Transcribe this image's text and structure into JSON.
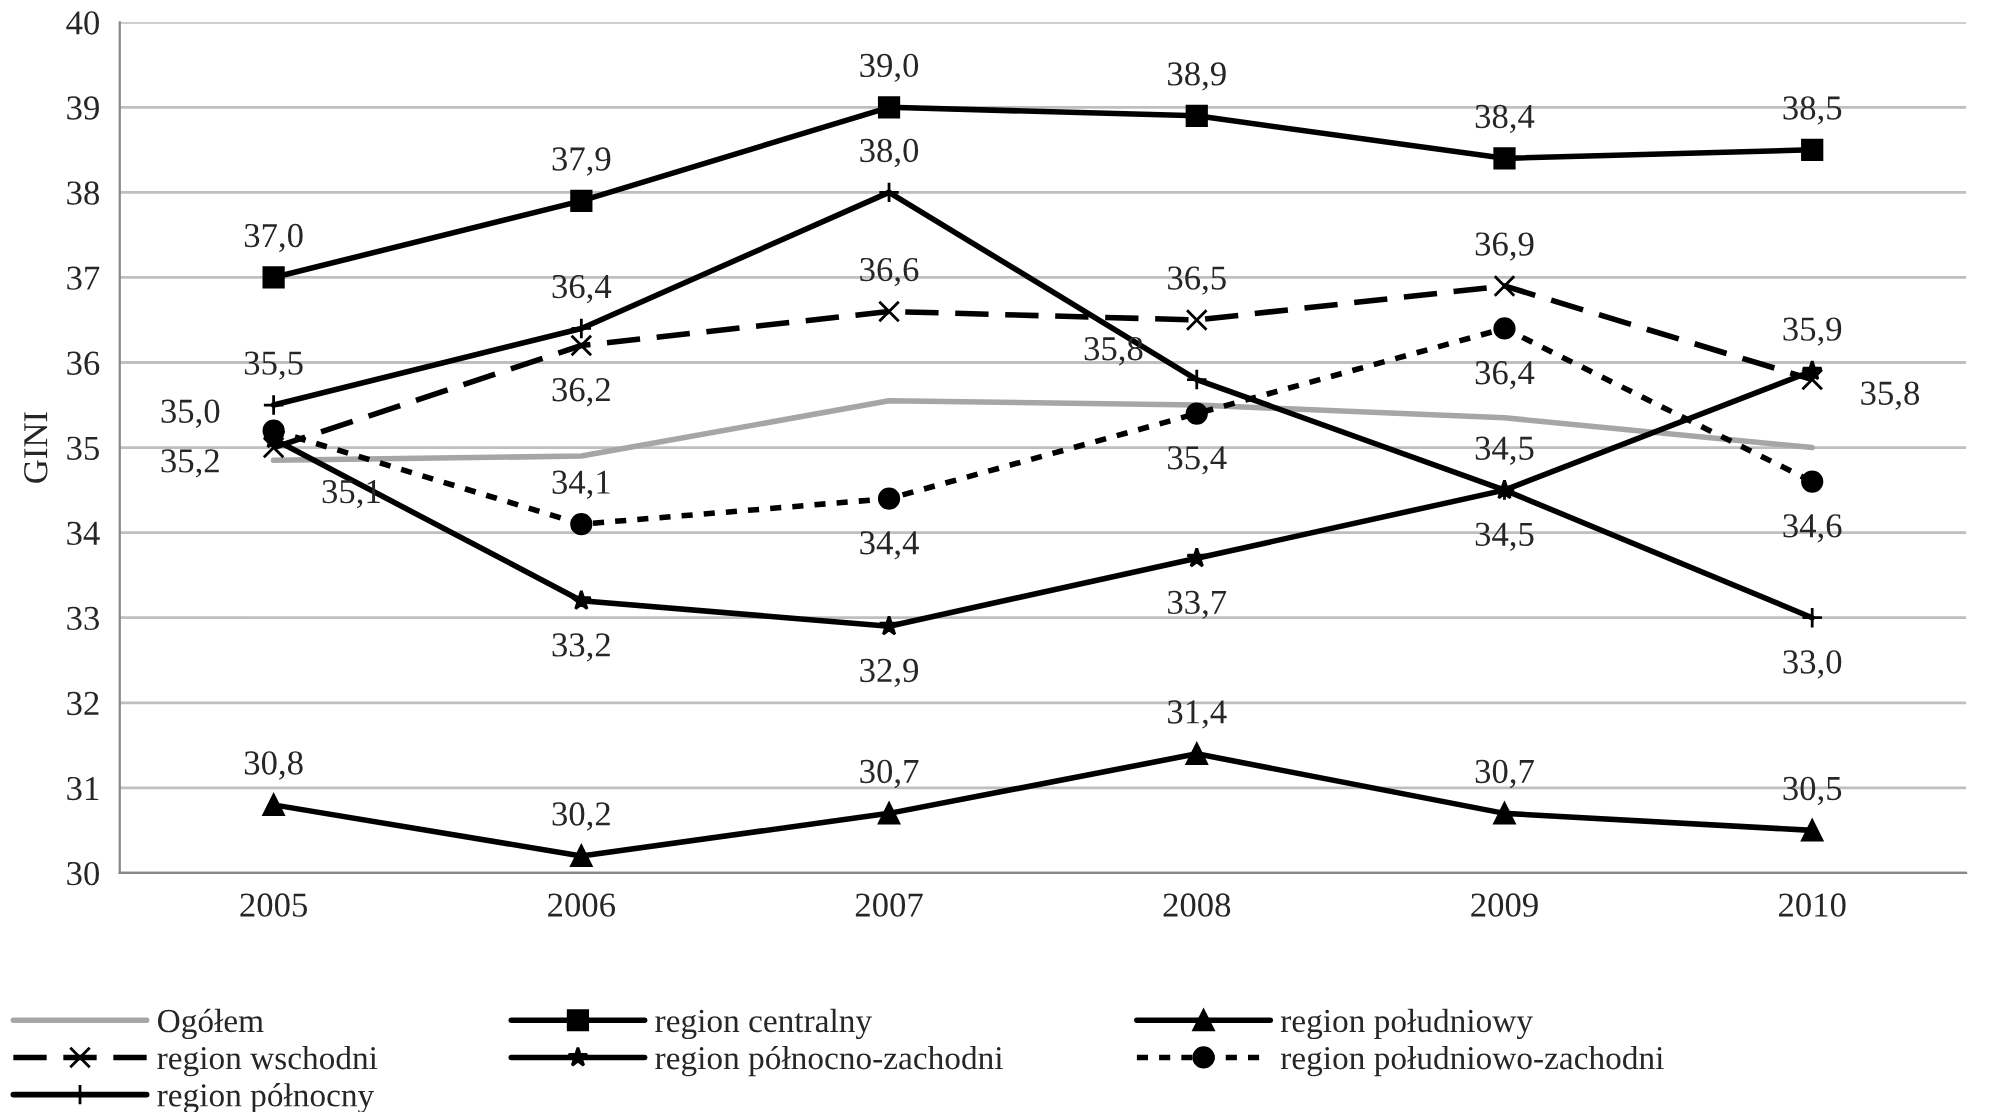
{
  "chart_data": {
    "type": "line",
    "ylabel": "GINI",
    "categories": [
      "2005",
      "2006",
      "2007",
      "2008",
      "2009",
      "2010"
    ],
    "ylim": [
      30,
      40
    ],
    "yticks": [
      30,
      31,
      32,
      33,
      34,
      35,
      36,
      37,
      38,
      39,
      40
    ],
    "grid": "y",
    "legend": "bottom",
    "series": [
      {
        "name": "Ogółem",
        "color": "#a6a6a6",
        "marker": "none",
        "line_style": "solid",
        "values": [
          34.85,
          34.9,
          35.55,
          35.5,
          35.35,
          35.0
        ]
      },
      {
        "name": "region centralny",
        "color": "#000000",
        "marker": "square",
        "line_style": "solid",
        "values": [
          37.0,
          37.9,
          39.0,
          38.9,
          38.4,
          38.5
        ],
        "value_labels": [
          "37,0",
          "37,9",
          "39,0",
          "38,9",
          "38,4",
          "38,5"
        ]
      },
      {
        "name": "region południowy",
        "color": "#000000",
        "marker": "triangle",
        "line_style": "solid",
        "values": [
          30.8,
          30.2,
          30.7,
          31.4,
          30.7,
          30.5
        ],
        "value_labels": [
          "30,8",
          "30,2",
          "30,7",
          "31,4",
          "30,7",
          "30,5"
        ]
      },
      {
        "name": "region wschodni",
        "color": "#000000",
        "marker": "cross",
        "line_style": "dashed",
        "values": [
          35.0,
          36.2,
          36.6,
          36.5,
          36.9,
          35.8
        ],
        "value_labels": [
          "35,0",
          "36,2",
          "36,6",
          "36,5",
          "36,9",
          "35,8"
        ]
      },
      {
        "name": "region północno-zachodni",
        "color": "#000000",
        "marker": "star",
        "line_style": "solid",
        "values": [
          35.1,
          33.2,
          32.9,
          33.7,
          34.5,
          35.9
        ],
        "value_labels": [
          "35,1",
          "33,2",
          "32,9",
          "33,7",
          "34,5",
          "35,9"
        ]
      },
      {
        "name": "region południowo-zachodni",
        "color": "#000000",
        "marker": "circle",
        "line_style": "dotted",
        "values": [
          35.2,
          34.1,
          34.4,
          35.4,
          36.4,
          34.6
        ],
        "value_labels": [
          "35,2",
          "34,1",
          "34,4",
          "35,4",
          "36,4",
          "34,6"
        ]
      },
      {
        "name": "region północny",
        "color": "#000000",
        "marker": "plus",
        "line_style": "solid",
        "values": [
          35.5,
          36.4,
          38.0,
          35.8,
          34.5,
          33.0
        ],
        "value_labels": [
          "35,5",
          "36,4",
          "38,0",
          "35,8",
          "34,5",
          "33,0"
        ]
      }
    ]
  }
}
